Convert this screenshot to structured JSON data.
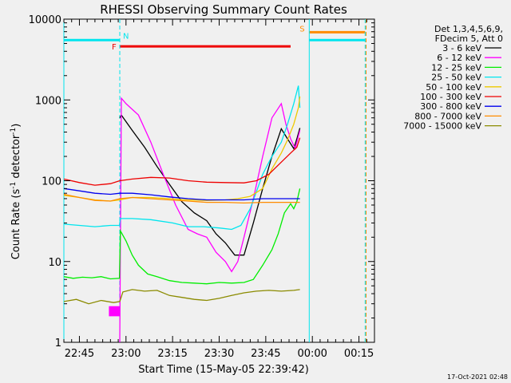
{
  "chart_data": {
    "type": "line",
    "title": "RHESSI Observing Summary Count Rates",
    "xlabel": "Start Time (15-May-05 22:39:42)",
    "ylabel_main": "Count Rate (s",
    "ylabel_sup1": "-1",
    "ylabel_mid": " detector",
    "ylabel_sup2": "-1",
    "ylabel_end": ")",
    "y_scale": "log",
    "ylim": [
      1,
      10000
    ],
    "xlim_minutes": [
      0,
      100
    ],
    "x_tick_minutes": [
      5,
      20,
      35,
      50,
      65,
      80,
      95
    ],
    "x_tick_labels": [
      "22:45",
      "23:00",
      "23:15",
      "23:30",
      "23:45",
      "00:00",
      "00:15"
    ],
    "y_ticks": [
      1,
      10,
      100,
      1000,
      10000
    ],
    "y_tick_labels": [
      "1",
      "10",
      "100",
      "1000",
      "10000"
    ],
    "legend_header": [
      "Det 1,3,4,5,6,9,",
      "FDecim 5, Att 0"
    ],
    "legend_placement": "right",
    "timestamp": "17-Oct-2021 02:48",
    "flags": [
      {
        "label": "N",
        "color": "#00e5ee",
        "intervals": [
          [
            0,
            18
          ],
          [
            79,
            97
          ]
        ],
        "value": 5500
      },
      {
        "label": "S",
        "color": "#ff8c00",
        "intervals": [
          [
            79,
            97
          ]
        ],
        "value": 6900
      },
      {
        "label": "F",
        "color": "#ee0000",
        "intervals": [
          [
            18,
            73
          ]
        ],
        "value": 4600
      }
    ],
    "vlines": [
      {
        "x": 0,
        "color": "#00e5ee",
        "style": "solid"
      },
      {
        "x": 18,
        "color": "#00e5ee",
        "style": "dashed"
      },
      {
        "x": 79,
        "color": "#00e5ee",
        "style": "solid"
      },
      {
        "x": 97,
        "color": "#00e5ee",
        "style": "dashed"
      },
      {
        "x": 97.3,
        "color": "#ff8c00",
        "style": "dashed"
      }
    ],
    "series": [
      {
        "name": "3 - 6 keV",
        "color": "#000000",
        "x": [
          18,
          18.5,
          22,
          26,
          30,
          34,
          38,
          42,
          46,
          49,
          52,
          55,
          58,
          61,
          64,
          67,
          70,
          72,
          74,
          75,
          76
        ],
        "y": [
          600,
          650,
          420,
          260,
          150,
          90,
          55,
          40,
          32,
          22,
          17,
          12,
          12,
          30,
          80,
          200,
          440,
          330,
          250,
          330,
          450
        ]
      },
      {
        "name": "6 - 12 keV",
        "color": "#ff00ff",
        "x": [
          18,
          18.5,
          20,
          24,
          28,
          32,
          36,
          40,
          43,
          46,
          49,
          52,
          54,
          56,
          58,
          61,
          64,
          67,
          70,
          71.5,
          73,
          74.5,
          76
        ],
        "y": [
          1,
          1050,
          900,
          650,
          300,
          120,
          50,
          25,
          22,
          20,
          13,
          10,
          7.5,
          10,
          20,
          60,
          200,
          600,
          900,
          500,
          330,
          250,
          420
        ]
      },
      {
        "name": "12 - 25 keV",
        "color": "#00ee00",
        "x": [
          0,
          3,
          6,
          9,
          12,
          15,
          17.9,
          18.2,
          20,
          22,
          24,
          27,
          30,
          34,
          38,
          42,
          46,
          50,
          54,
          58,
          61,
          64,
          67,
          69,
          71,
          73,
          74,
          75,
          76
        ],
        "y": [
          6.5,
          6.2,
          6.4,
          6.3,
          6.5,
          6.1,
          6.2,
          24,
          18,
          12,
          9,
          7,
          6.5,
          5.8,
          5.5,
          5.4,
          5.3,
          5.5,
          5.4,
          5.5,
          6,
          9,
          14,
          22,
          40,
          52,
          45,
          55,
          80
        ]
      },
      {
        "name": "25 - 50 keV",
        "color": "#00e5ee",
        "x": [
          0,
          5,
          10,
          15,
          17.9,
          18.2,
          22,
          28,
          35,
          40,
          45,
          50,
          54,
          57,
          60,
          64,
          67,
          70,
          72,
          74,
          75.5,
          76
        ],
        "y": [
          29,
          28,
          27,
          28,
          28,
          34,
          34,
          33,
          30,
          27,
          27,
          26,
          25,
          28,
          45,
          120,
          200,
          300,
          500,
          900,
          1500,
          800
        ]
      },
      {
        "name": "50 - 100 keV",
        "color": "#eec900",
        "x": [
          0,
          5,
          10,
          15,
          18,
          22,
          28,
          34,
          40,
          46,
          52,
          56,
          60,
          64,
          67,
          70,
          72,
          74,
          75.5,
          76
        ],
        "y": [
          66,
          62,
          58,
          56,
          58,
          62,
          62,
          60,
          58,
          57,
          58,
          60,
          64,
          80,
          140,
          220,
          320,
          500,
          800,
          1100
        ]
      },
      {
        "name": "100 - 300 keV",
        "color": "#ee0000",
        "x": [
          0,
          5,
          10,
          15,
          18,
          22,
          28,
          34,
          40,
          46,
          52,
          58,
          62,
          66,
          70,
          73,
          75,
          76
        ],
        "y": [
          105,
          95,
          88,
          92,
          100,
          105,
          110,
          108,
          100,
          96,
          95,
          94,
          100,
          120,
          170,
          220,
          260,
          340
        ]
      },
      {
        "name": "300 - 800 keV",
        "color": "#0000ee",
        "x": [
          0,
          5,
          10,
          15,
          18,
          22,
          28,
          34,
          40,
          46,
          52,
          58,
          64,
          70,
          76
        ],
        "y": [
          80,
          75,
          70,
          68,
          70,
          70,
          67,
          63,
          60,
          58,
          58,
          58,
          60,
          60,
          60
        ]
      },
      {
        "name": "800 - 7000 keV",
        "color": "#ff8c00",
        "x": [
          0,
          5,
          10,
          15,
          18,
          22,
          28,
          34,
          40,
          46,
          52,
          58,
          64,
          70,
          76
        ],
        "y": [
          68,
          62,
          57,
          56,
          60,
          62,
          60,
          58,
          56,
          54,
          54,
          53,
          54,
          54,
          54
        ]
      },
      {
        "name": "7000 - 15000 keV",
        "color": "#8b8b00",
        "x": [
          0,
          4,
          8,
          12,
          16,
          18,
          19,
          22,
          26,
          30,
          34,
          38,
          42,
          46,
          50,
          54,
          58,
          62,
          66,
          70,
          74,
          76
        ],
        "y": [
          3.2,
          3.4,
          3.0,
          3.3,
          3.1,
          3.2,
          4.2,
          4.5,
          4.3,
          4.4,
          3.8,
          3.6,
          3.4,
          3.3,
          3.5,
          3.8,
          4.1,
          4.3,
          4.4,
          4.3,
          4.4,
          4.5
        ]
      }
    ],
    "annotations": [
      {
        "type": "magenta-block",
        "x": [
          14.5,
          18
        ],
        "y": [
          2.1,
          2.8
        ],
        "color": "#ff00ff"
      }
    ]
  }
}
